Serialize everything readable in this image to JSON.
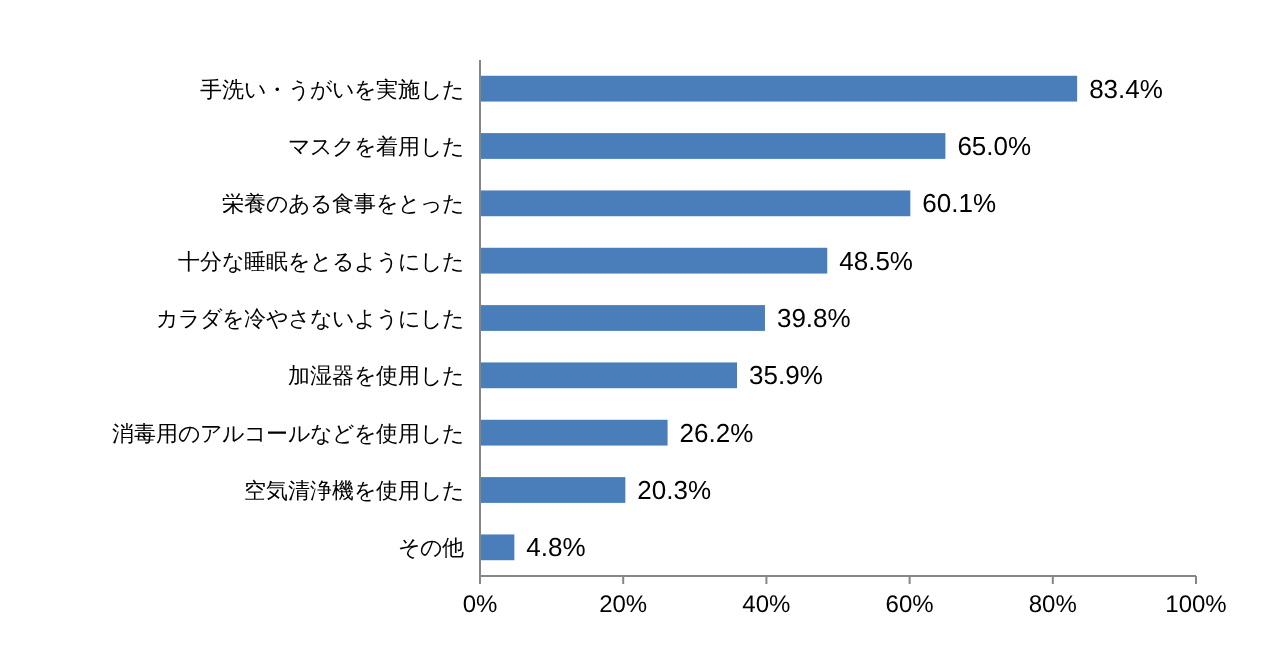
{
  "chart_data": {
    "type": "bar",
    "orientation": "horizontal",
    "categories": [
      "手洗い・うがいを実施した",
      "マスクを着用した",
      "栄養のある食事をとった",
      "十分な睡眠をとるようにした",
      "カラダを冷やさないようにした",
      "加湿器を使用した",
      "消毒用のアルコールなどを使用した",
      "空気清浄機を使用した",
      "その他"
    ],
    "values": [
      83.4,
      65.0,
      60.1,
      48.5,
      39.8,
      35.9,
      26.2,
      20.3,
      4.8
    ],
    "value_labels": [
      "83.4%",
      "65.0%",
      "60.1%",
      "48.5%",
      "39.8%",
      "35.9%",
      "26.2%",
      "20.3%",
      "4.8%"
    ],
    "color": "#4a7ebb",
    "xlim": [
      0,
      100
    ],
    "xticks": [
      {
        "value": 0,
        "label": "0%"
      },
      {
        "value": 20,
        "label": "20%"
      },
      {
        "value": 40,
        "label": "40%"
      },
      {
        "value": 60,
        "label": "60%"
      },
      {
        "value": 80,
        "label": "80%"
      },
      {
        "value": 100,
        "label": "100%"
      }
    ],
    "grid": false
  }
}
